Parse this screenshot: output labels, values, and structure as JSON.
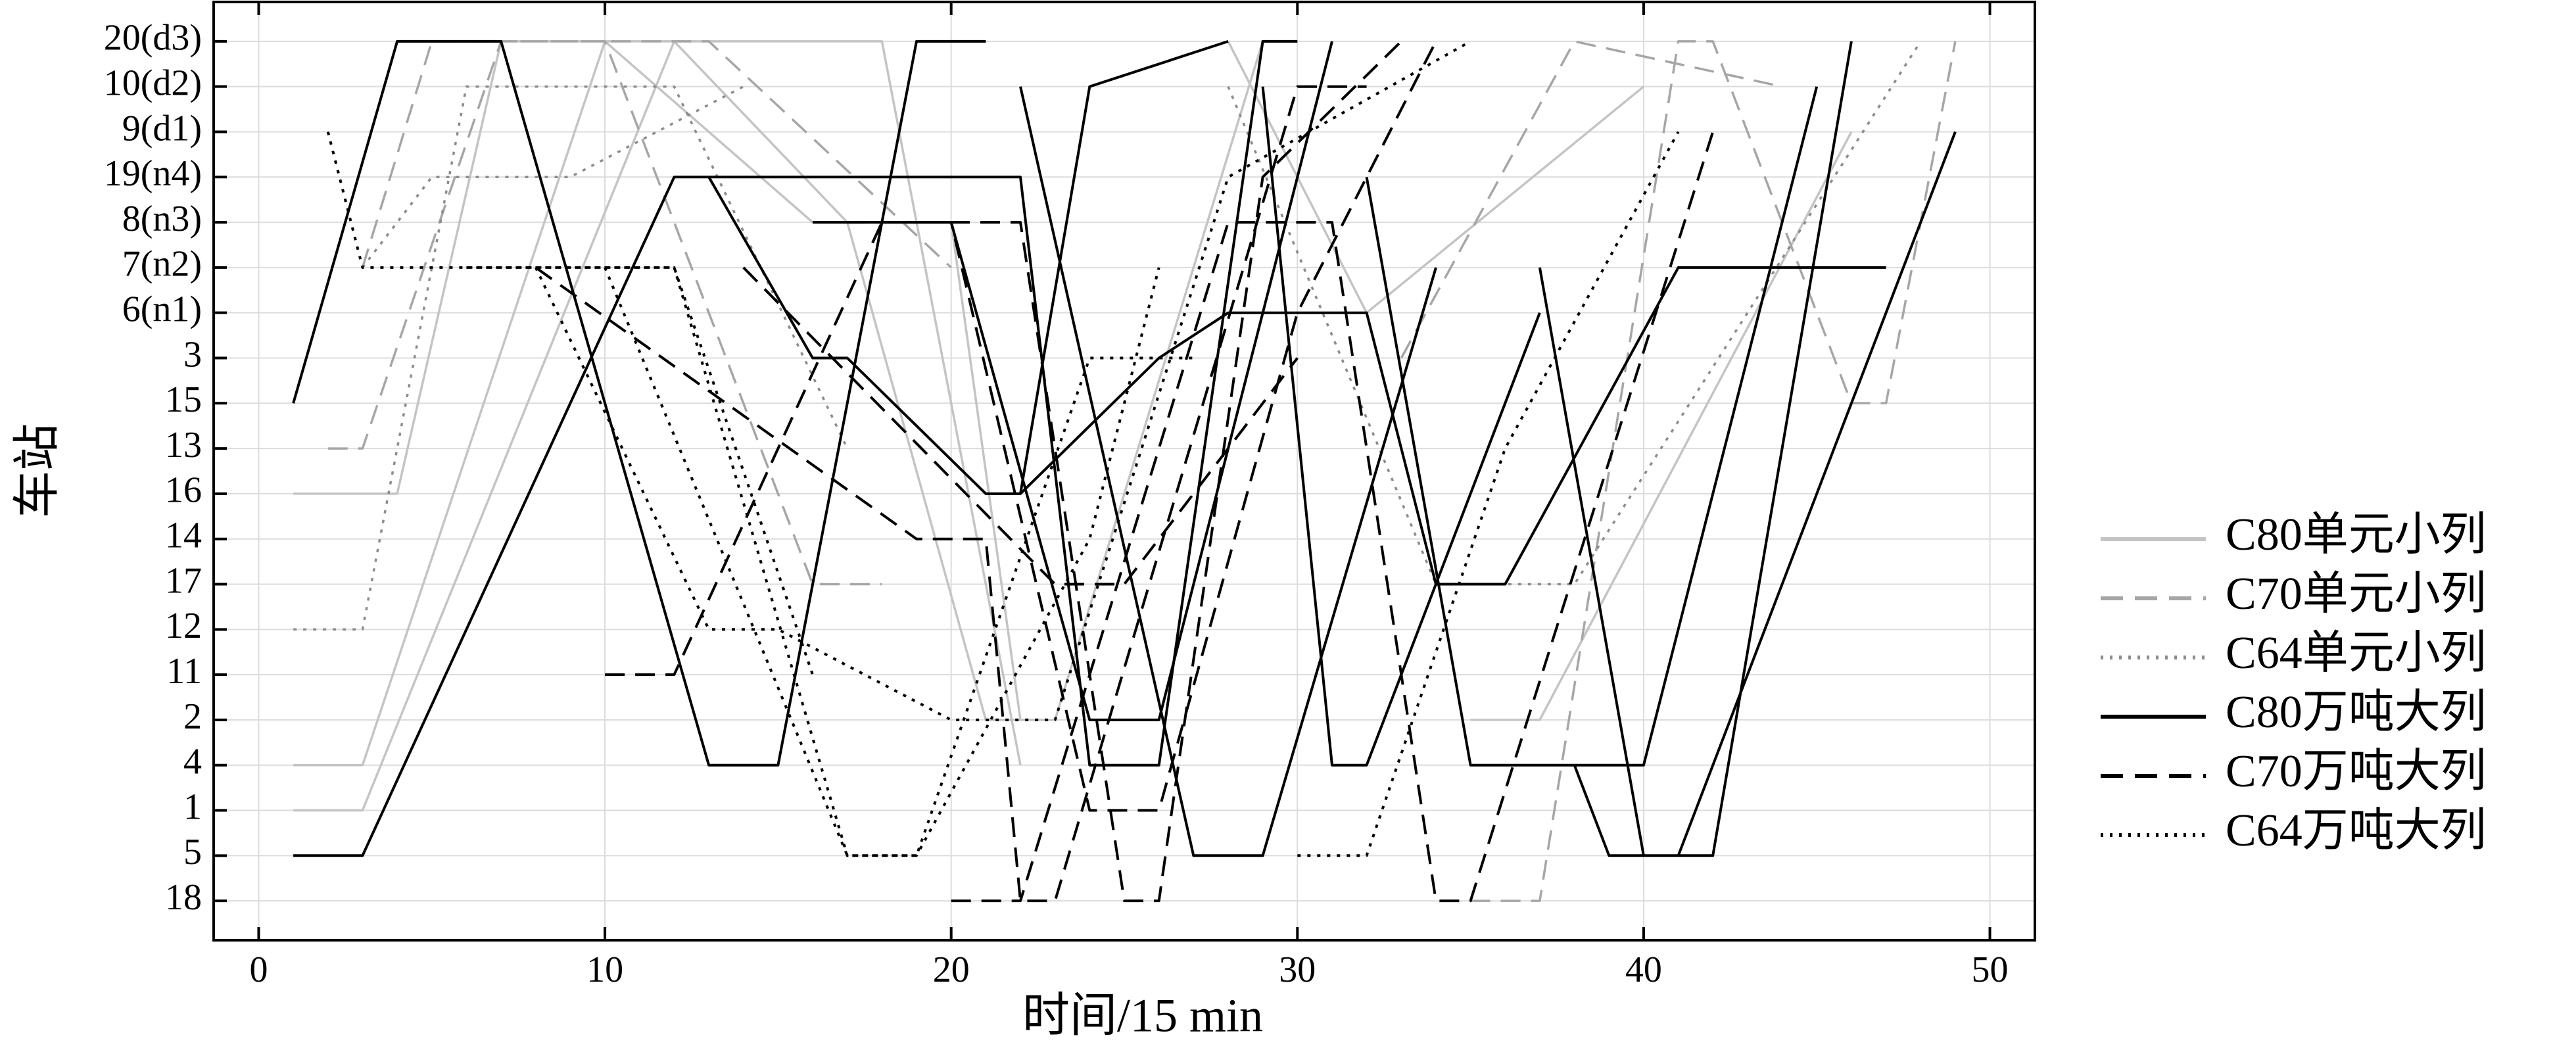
{
  "chart_data": {
    "type": "line",
    "x_label": "时间/15 min",
    "y_label": "车站",
    "xlim": [
      -1.3,
      51.3
    ],
    "xticks": [
      0,
      10,
      20,
      30,
      40,
      50
    ],
    "ycategories": [
      "20(d3)",
      "10(d2)",
      "9(d1)",
      "19(n4)",
      "8(n3)",
      "7(n2)",
      "6(n1)",
      "3",
      "15",
      "13",
      "16",
      "14",
      "17",
      "12",
      "11",
      "2",
      "4",
      "1",
      "5",
      "18"
    ],
    "grid": true,
    "legend": "right",
    "series": [
      {
        "name": "C80单元小列",
        "color": "#c4c4c4",
        "dash": "solid",
        "x": [
          1,
          4,
          7,
          12,
          17,
          21,
          23,
          29,
          null,
          1,
          3,
          10,
          16,
          20,
          22,
          null,
          1,
          3,
          12,
          18,
          22,
          null,
          35,
          37,
          46,
          null,
          28,
          32,
          40
        ],
        "values": [
          "16",
          "16",
          "20(d3)",
          "20(d3)",
          "8(n3)",
          "2",
          "2",
          "20(d3)",
          null,
          "4",
          "4",
          "20(d3)",
          "8(n3)",
          "8(n3)",
          "2",
          null,
          "1",
          "1",
          "20(d3)",
          "20(d3)",
          "4",
          null,
          "2",
          "2",
          "9(d1)",
          null,
          "20(d3)",
          "6(n1)",
          "10(d2)"
        ]
      },
      {
        "name": "C70单元小列",
        "color": "#a6a6a6",
        "dash": "dashed",
        "x": [
          2,
          3,
          7,
          13,
          20,
          null,
          3,
          5,
          10,
          16,
          18,
          null,
          35,
          37,
          41,
          42,
          46,
          47,
          49,
          null,
          33,
          38,
          44
        ],
        "values": [
          "13",
          "13",
          "20(d3)",
          "20(d3)",
          "7(n2)",
          null,
          "7(n2)",
          "20(d3)",
          "20(d3)",
          "17",
          "17",
          null,
          "18",
          "18",
          "20(d3)",
          "20(d3)",
          "15",
          "15",
          "20(d3)",
          null,
          "3",
          "20(d3)",
          "10(d2)"
        ]
      },
      {
        "name": "C64单元小列",
        "color": "#8c8c8c",
        "dash": "dotted",
        "x": [
          1,
          3,
          6,
          12,
          17,
          null,
          3,
          5,
          9,
          14,
          null,
          28,
          34,
          38,
          48
        ],
        "values": [
          "12",
          "12",
          "10(d2)",
          "10(d2)",
          "13",
          null,
          "7(n2)",
          "19(n4)",
          "19(n4)",
          "10(d2)",
          null,
          "10(d2)",
          "17",
          "17",
          "20(d3)"
        ]
      },
      {
        "name": "C80万吨大列",
        "color": "#000000",
        "dash": "solid",
        "x": [
          1,
          4,
          7,
          13,
          15,
          19,
          21,
          null,
          1,
          3,
          12,
          22,
          24,
          26,
          29,
          30,
          null,
          16,
          20,
          24,
          26,
          31,
          null,
          13,
          16,
          17,
          21,
          22,
          24,
          28,
          null,
          22,
          27,
          29,
          34,
          null,
          29,
          31,
          32,
          37,
          null,
          32,
          35,
          37,
          40,
          45,
          null,
          37,
          40,
          42,
          46,
          null,
          38,
          39,
          41,
          49,
          null,
          22,
          26,
          28,
          32,
          34,
          36,
          41,
          47
        ],
        "values": [
          "15",
          "20(d3)",
          "20(d3)",
          "4",
          "4",
          "20(d3)",
          "20(d3)",
          null,
          "5",
          "5",
          "19(n4)",
          "19(n4)",
          "4",
          "4",
          "20(d3)",
          "20(d3)",
          null,
          "8(n3)",
          "8(n3)",
          "2",
          "2",
          "20(d3)",
          null,
          "19(n4)",
          "3",
          "3",
          "16",
          "16",
          "10(d2)",
          "20(d3)",
          null,
          "10(d2)",
          "5",
          "5",
          "7(n2)",
          null,
          "10(d2)",
          "4",
          "4",
          "6(n1)",
          null,
          "19(n4)",
          "4",
          "4",
          "4",
          "10(d2)",
          null,
          "7(n2)",
          "5",
          "5",
          "20(d3)",
          null,
          "4",
          "5",
          "5",
          "9(d1)",
          null,
          "16",
          "3",
          "6(n1)",
          "6(n1)",
          "17",
          "17",
          "7(n2)",
          "7(n2)"
        ]
      },
      {
        "name": "C70万吨大列",
        "color": "#000000",
        "dash": "dashed",
        "x": [
          10,
          12,
          18,
          22,
          25,
          26,
          29,
          33,
          null,
          8,
          19,
          21,
          22,
          23,
          30,
          32,
          null,
          17,
          20,
          24,
          26,
          30,
          34,
          null,
          20,
          22,
          28,
          31,
          34,
          35,
          42,
          null,
          14,
          23,
          25,
          30
        ],
        "values": [
          "11",
          "11",
          "8(n3)",
          "8(n3)",
          "18",
          "18",
          "19(n4)",
          "20(d3)",
          null,
          "7(n2)",
          "14",
          "14",
          "18",
          "18",
          "10(d2)",
          "10(d2)",
          null,
          "8(n3)",
          "8(n3)",
          "1",
          "1",
          "6(n1)",
          "20(d3)",
          null,
          "18",
          "18",
          "8(n3)",
          "8(n3)",
          "18",
          "18",
          "9(d1)",
          null,
          "7(n2)",
          "17",
          "17",
          "3"
        ]
      },
      {
        "name": "C64万吨大列",
        "color": "#000000",
        "dash": "dotted",
        "x": [
          6,
          12,
          17,
          19,
          24,
          26,
          null,
          8,
          13,
          15,
          20,
          23,
          28,
          35,
          null,
          10,
          17,
          19,
          24,
          27,
          null,
          30,
          32,
          36,
          41,
          null,
          2,
          3,
          6,
          12,
          16
        ],
        "values": [
          "7(n2)",
          "7(n2)",
          "5",
          "5",
          "14",
          "7(n2)",
          null,
          "7(n2)",
          "12",
          "12",
          "2",
          "2",
          "19(n4)",
          "20(d3)",
          null,
          "7(n2)",
          "5",
          "5",
          "3",
          "3",
          null,
          "5",
          "5",
          "13",
          "9(d1)",
          null,
          "9(d1)",
          "7(n2)",
          "7(n2)",
          "7(n2)",
          "11"
        ]
      }
    ]
  }
}
